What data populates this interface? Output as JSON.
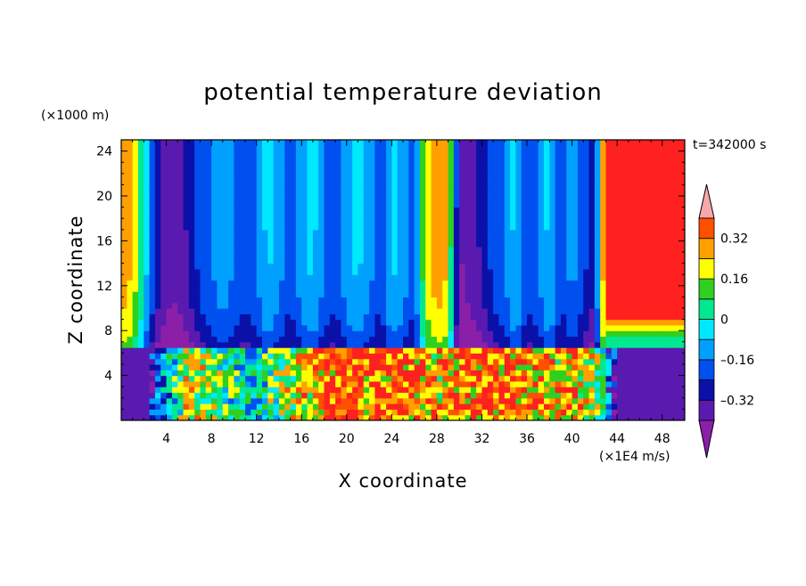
{
  "chart_data": {
    "type": "heatmap",
    "title": "potential temperature deviation",
    "xlabel": "X coordinate",
    "ylabel": "Z coordinate",
    "x_unit": "(×1E4 m/s)",
    "y_unit": "(×1000 m)",
    "time_label": "t=342000 s",
    "xlim": [
      0,
      50
    ],
    "ylim": [
      0,
      25
    ],
    "x_ticks": [
      4,
      8,
      12,
      16,
      20,
      24,
      28,
      32,
      36,
      40,
      44,
      48
    ],
    "y_ticks": [
      4,
      8,
      12,
      16,
      20,
      24
    ],
    "colorbar": {
      "levels": [
        -0.4,
        -0.32,
        -0.24,
        -0.16,
        -0.08,
        0,
        0.08,
        0.16,
        0.24,
        0.32,
        0.4
      ],
      "labels": [
        "0.32",
        "0.16",
        "0",
        "–0.16",
        "–0.32"
      ],
      "label_values": [
        0.32,
        0.16,
        0,
        -0.16,
        -0.32
      ],
      "colors": [
        "#8b1fa8",
        "#5a1ab0",
        "#0a10a8",
        "#0050f0",
        "#00a0ff",
        "#00e8ff",
        "#00e890",
        "#30d020",
        "#ffff00",
        "#ffa000",
        "#ff5000",
        "#ff2020",
        "#f8a8a8"
      ],
      "extend": "both"
    },
    "layers": [
      {
        "name": "lower",
        "z_range": [
          0,
          6.7
        ]
      },
      {
        "name": "upper",
        "z_range": [
          6.7,
          25
        ]
      }
    ],
    "upper_columns_x": [
      0,
      1,
      2,
      3,
      4,
      5,
      6,
      7,
      8,
      9,
      10,
      11,
      12,
      13,
      14,
      15,
      16,
      17,
      18,
      19,
      20,
      21,
      22,
      23,
      24,
      25,
      26,
      27,
      28,
      29,
      30,
      31,
      32,
      33,
      34,
      35,
      36,
      37,
      38,
      39,
      40,
      41,
      42,
      43,
      44,
      45,
      46,
      47,
      48,
      49,
      50
    ],
    "upper_values": [
      0.3,
      0.25,
      0.0,
      -0.25,
      -0.35,
      -0.36,
      -0.3,
      -0.2,
      -0.15,
      -0.1,
      -0.15,
      -0.2,
      -0.15,
      -0.05,
      -0.12,
      -0.2,
      -0.1,
      -0.05,
      -0.15,
      -0.2,
      -0.1,
      -0.05,
      -0.12,
      -0.2,
      -0.05,
      -0.1,
      -0.2,
      0.2,
      0.3,
      0.25,
      -0.4,
      -0.35,
      -0.3,
      -0.2,
      -0.15,
      -0.05,
      -0.2,
      -0.15,
      -0.05,
      -0.2,
      -0.12,
      -0.2,
      -0.3,
      0.45,
      0.45,
      0.45,
      0.45,
      0.45,
      0.45,
      0.45,
      0.45
    ],
    "lower_columns_x": [
      0,
      2,
      4,
      6,
      8,
      10,
      12,
      14,
      16,
      18,
      20,
      22,
      24,
      26,
      28,
      30,
      32,
      34,
      36,
      38,
      40,
      42,
      44,
      46,
      48,
      50
    ],
    "lower_values": [
      -0.4,
      -0.4,
      -0.1,
      0.2,
      0.1,
      0.0,
      -0.05,
      0.1,
      0.2,
      0.3,
      0.4,
      0.3,
      0.35,
      0.3,
      0.25,
      0.3,
      0.35,
      0.3,
      0.3,
      0.25,
      0.3,
      0.2,
      -0.4,
      -0.4,
      -0.4,
      -0.4
    ]
  }
}
